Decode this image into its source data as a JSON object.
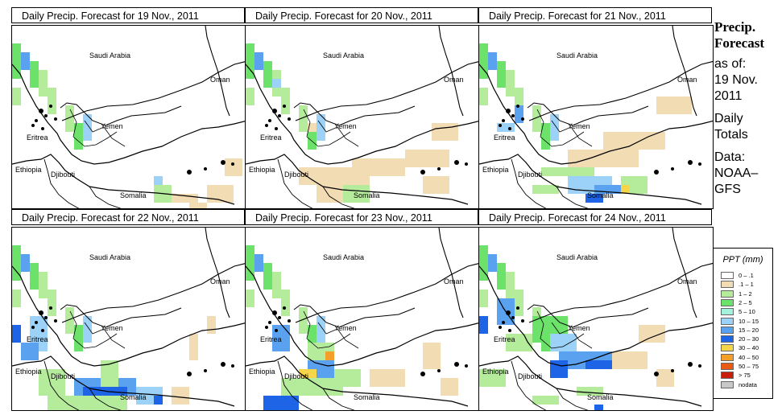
{
  "panels": [
    {
      "title": "Daily Precip. Forecast for  19 Nov., 2011"
    },
    {
      "title": "Daily Precip. Forecast for  20 Nov., 2011"
    },
    {
      "title": "Daily Precip. Forecast for  21 Nov., 2011"
    },
    {
      "title": "Daily Precip. Forecast for  22 Nov., 2011"
    },
    {
      "title": "Daily Precip. Forecast for  23 Nov., 2011"
    },
    {
      "title": "Daily Precip. Forecast for  24 Nov., 2011"
    }
  ],
  "map_labels": {
    "saudi_arabia": "Saudi Arabia",
    "oman": "Oman",
    "yemen": "Yemen",
    "eritrea": "Eritrea",
    "ethiopia": "Ethiopia",
    "djibouti": "Djibouti",
    "somalia": "Somalia"
  },
  "side": {
    "line1": "Precip.",
    "line2": "Forecast",
    "line3": "as of:",
    "line4": "19 Nov.",
    "line5": "2011",
    "line6": "Daily",
    "line7": "Totals",
    "line8": "Data:",
    "line9": "NOAA–",
    "line10": "GFS"
  },
  "legend": {
    "title": "PPT (mm)",
    "items": [
      {
        "label": "0 – .1",
        "color": "#ffffff"
      },
      {
        "label": ".1 – 1",
        "color": "#f2dcb4"
      },
      {
        "label": "1 – 2",
        "color": "#b4ec9c"
      },
      {
        "label": "2 – 5",
        "color": "#6de26b"
      },
      {
        "label": "5 – 10",
        "color": "#a4f2dc"
      },
      {
        "label": "10 – 15",
        "color": "#9cd2f7"
      },
      {
        "label": "15 – 20",
        "color": "#5aa2f0"
      },
      {
        "label": "20 – 30",
        "color": "#1e64e6"
      },
      {
        "label": "30 – 40",
        "color": "#f7d54a"
      },
      {
        "label": "40 – 50",
        "color": "#f49f2a"
      },
      {
        "label": "50 – 75",
        "color": "#ea5a14"
      },
      {
        "label": "> 75",
        "color": "#c81e0a"
      },
      {
        "label": "nodata",
        "color": "#c8c8c8"
      }
    ]
  }
}
